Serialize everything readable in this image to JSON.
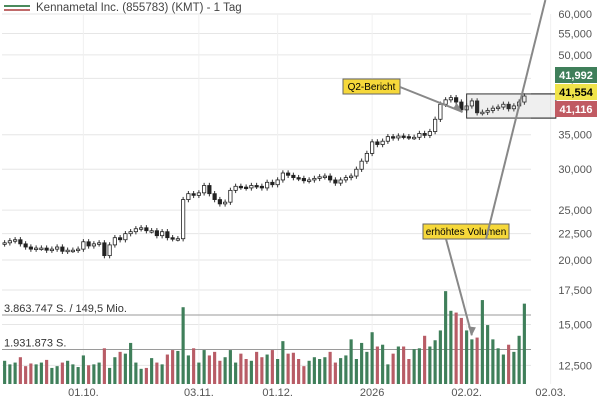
{
  "legend": {
    "title": "Kennametal Inc. (855783) (KMT) - 1 Tag",
    "colors": {
      "up": "#3f7f5a",
      "down": "#b85c66"
    }
  },
  "chart_data": {
    "type": "candlestick",
    "title": "Kennametal Inc. (855783) (KMT) - 1 Tag",
    "y_scale": "log",
    "ylim": [
      11500,
      60000
    ],
    "y_ticks": [
      {
        "value": 60000,
        "label": "60,000"
      },
      {
        "value": 55000,
        "label": "55,000"
      },
      {
        "value": 50000,
        "label": "50,000"
      },
      {
        "value": 45000,
        "label": "45,000"
      },
      {
        "value": 35000,
        "label": "35,000"
      },
      {
        "value": 30000,
        "label": "30,000"
      },
      {
        "value": 25000,
        "label": "25,000"
      },
      {
        "value": 22500,
        "label": "22,500"
      },
      {
        "value": 20000,
        "label": "20,000"
      },
      {
        "value": 17500,
        "label": "17,500"
      },
      {
        "value": 15000,
        "label": "15,000"
      },
      {
        "value": 12500,
        "label": "12,500"
      }
    ],
    "x_labels": [
      {
        "index": 15,
        "label": "01.10."
      },
      {
        "index": 37,
        "label": "03.11."
      },
      {
        "index": 52,
        "label": "01.12."
      },
      {
        "index": 70,
        "label": "2026"
      },
      {
        "index": 88,
        "label": "02.02."
      },
      {
        "index": 104,
        "label": "02.03."
      }
    ],
    "price_badges": [
      {
        "label": "41,992",
        "value": 41992,
        "color": "#3f7f5a",
        "text_color": "#ffffff"
      },
      {
        "label": "41,554",
        "value": 41554,
        "color": "#f0e34a",
        "text_color": "#000000"
      },
      {
        "label": "41,116",
        "value": 41116,
        "color": "#c05a62",
        "text_color": "#ffffff"
      }
    ],
    "annotations": [
      {
        "text": "Q2-Bericht",
        "target_index": 88
      },
      {
        "text": "erhöhtes Volumen",
        "target_indices": [
          89,
          103
        ]
      }
    ],
    "range_box": {
      "from_index": 89,
      "to_index": 105,
      "high": 41992,
      "low": 37700
    },
    "volume": {
      "reference_lines": [
        {
          "label": "3.863.747 S. / 149,5 Mio.",
          "value": 3863747
        },
        {
          "label": "1.931.873 S.",
          "value": 1931873
        }
      ]
    },
    "series": [
      {
        "type": "ohlc",
        "close": [
          21600,
          21800,
          21900,
          21500,
          21200,
          21000,
          21100,
          21100,
          20900,
          21000,
          21200,
          20800,
          20900,
          20900,
          21000,
          21700,
          21300,
          21500,
          21600,
          20400,
          21400,
          22100,
          21900,
          22500,
          22700,
          23000,
          23100,
          22800,
          22800,
          22300,
          22700,
          22100,
          22000,
          22000,
          26200,
          26900,
          26700,
          27000,
          27900,
          26900,
          26200,
          25700,
          25900,
          27300,
          27800,
          27700,
          27600,
          27900,
          27800,
          27600,
          28300,
          28000,
          28600,
          29500,
          29200,
          28900,
          28800,
          28500,
          28600,
          28800,
          29000,
          29100,
          28600,
          28200,
          28600,
          28900,
          29100,
          30000,
          31100,
          32200,
          33900,
          33500,
          34000,
          34700,
          34500,
          34800,
          34700,
          34600,
          34600,
          35200,
          34900,
          35500,
          37500,
          40100,
          40900,
          41300,
          40500,
          39100,
          39800,
          40700,
          38600,
          38700,
          39000,
          39400,
          39600,
          40100,
          39300,
          39800,
          40500,
          41600
        ],
        "volume": [
          1300000,
          1100000,
          1200000,
          1500000,
          1000000,
          1150000,
          1100000,
          1200000,
          1350000,
          900000,
          1000000,
          1200000,
          1300000,
          1100000,
          950000,
          1600000,
          1050000,
          1100000,
          1200000,
          2000000,
          900000,
          1500000,
          1800000,
          1700000,
          2300000,
          1200000,
          850000,
          900000,
          1450000,
          1200000,
          1100000,
          1650000,
          1900000,
          1850000,
          4300000,
          1600000,
          2000000,
          1200000,
          1900000,
          1600000,
          1800000,
          1300000,
          1500000,
          1900000,
          1200000,
          1700000,
          1400000,
          1300000,
          1800000,
          1500000,
          1650000,
          1900000,
          1400000,
          2400000,
          1700000,
          1750000,
          1400000,
          1000000,
          1300000,
          1500000,
          1400000,
          1500000,
          1800000,
          1200000,
          1450000,
          1600000,
          2500000,
          1400000,
          2300000,
          1800000,
          2900000,
          2100000,
          2200000,
          1100000,
          1700000,
          2100000,
          2100000,
          1400000,
          1950000,
          2000000,
          2700000,
          2100000,
          2450000,
          3000000,
          5200000,
          4100000,
          4000000,
          3700000,
          3000000,
          2500000,
          2600000,
          4700000,
          3300000,
          2500000,
          2000000,
          1650000,
          2200000,
          1800000,
          2700000,
          4500000
        ]
      }
    ]
  }
}
